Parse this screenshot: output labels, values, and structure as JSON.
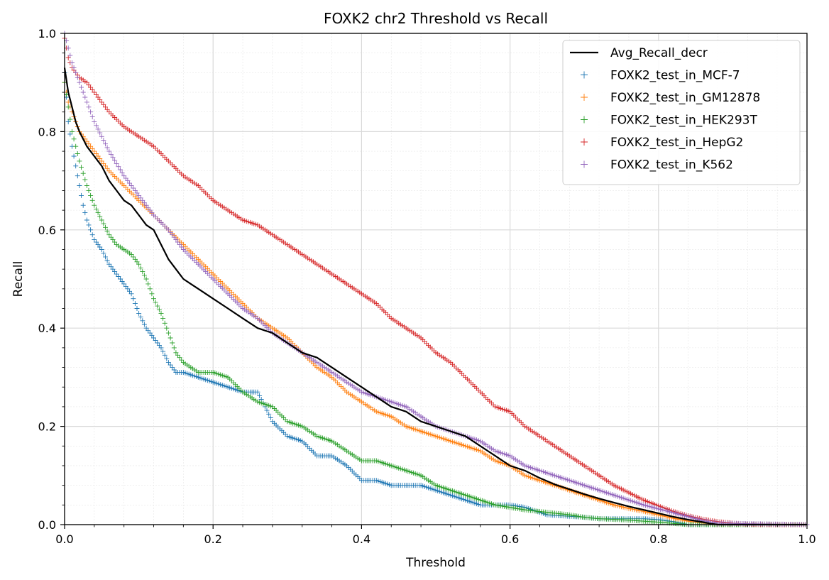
{
  "chart_data": {
    "type": "scatter",
    "title": "FOXK2 chr2 Threshold vs Recall",
    "xlabel": "Threshold",
    "ylabel": "Recall",
    "xlim": [
      0.0,
      1.0
    ],
    "ylim": [
      0.0,
      1.0
    ],
    "xticks": [
      "0.0",
      "0.2",
      "0.4",
      "0.6",
      "0.8",
      "1.0"
    ],
    "yticks": [
      "0.0",
      "0.2",
      "0.4",
      "0.6",
      "0.8",
      "1.0"
    ],
    "grid": true,
    "minor_grid": true,
    "legend_position": "upper right",
    "series": [
      {
        "name": "Avg_Recall_decr",
        "kind": "line",
        "color": "#000000",
        "x": [
          0.0,
          0.005,
          0.01,
          0.015,
          0.02,
          0.03,
          0.04,
          0.05,
          0.06,
          0.07,
          0.08,
          0.09,
          0.1,
          0.11,
          0.12,
          0.13,
          0.14,
          0.15,
          0.16,
          0.17,
          0.18,
          0.2,
          0.22,
          0.24,
          0.26,
          0.28,
          0.3,
          0.32,
          0.34,
          0.36,
          0.38,
          0.4,
          0.42,
          0.44,
          0.46,
          0.48,
          0.5,
          0.52,
          0.54,
          0.56,
          0.58,
          0.6,
          0.62,
          0.64,
          0.66,
          0.68,
          0.7,
          0.72,
          0.74,
          0.76,
          0.78,
          0.8,
          0.82,
          0.84,
          0.86,
          0.87,
          0.88,
          0.89,
          0.9,
          1.0
        ],
        "y": [
          0.93,
          0.88,
          0.85,
          0.82,
          0.8,
          0.77,
          0.75,
          0.73,
          0.7,
          0.68,
          0.66,
          0.65,
          0.63,
          0.61,
          0.6,
          0.57,
          0.54,
          0.52,
          0.5,
          0.49,
          0.48,
          0.46,
          0.44,
          0.42,
          0.4,
          0.39,
          0.37,
          0.35,
          0.34,
          0.32,
          0.3,
          0.28,
          0.26,
          0.24,
          0.23,
          0.21,
          0.2,
          0.19,
          0.18,
          0.16,
          0.14,
          0.12,
          0.11,
          0.095,
          0.082,
          0.072,
          0.062,
          0.053,
          0.045,
          0.037,
          0.03,
          0.023,
          0.016,
          0.01,
          0.005,
          0.002,
          0.0,
          0.0,
          0.0,
          0.0
        ]
      },
      {
        "name": "FOXK2_test_in_MCF-7",
        "kind": "markers",
        "color": "#1f77b4",
        "x": [
          0.0,
          0.005,
          0.01,
          0.015,
          0.02,
          0.025,
          0.03,
          0.035,
          0.04,
          0.05,
          0.06,
          0.07,
          0.08,
          0.09,
          0.1,
          0.11,
          0.12,
          0.13,
          0.14,
          0.15,
          0.16,
          0.18,
          0.2,
          0.22,
          0.24,
          0.26,
          0.27,
          0.28,
          0.3,
          0.32,
          0.34,
          0.36,
          0.38,
          0.4,
          0.42,
          0.44,
          0.46,
          0.48,
          0.5,
          0.52,
          0.54,
          0.56,
          0.6,
          0.62,
          0.65,
          0.7,
          0.72,
          0.75,
          0.78,
          0.8,
          0.82,
          0.84,
          1.0
        ],
        "y": [
          0.92,
          0.82,
          0.77,
          0.73,
          0.69,
          0.65,
          0.62,
          0.6,
          0.58,
          0.56,
          0.53,
          0.51,
          0.49,
          0.47,
          0.43,
          0.4,
          0.38,
          0.36,
          0.33,
          0.31,
          0.31,
          0.3,
          0.29,
          0.28,
          0.27,
          0.27,
          0.24,
          0.21,
          0.18,
          0.17,
          0.14,
          0.14,
          0.12,
          0.09,
          0.09,
          0.08,
          0.08,
          0.08,
          0.07,
          0.06,
          0.05,
          0.04,
          0.04,
          0.035,
          0.02,
          0.015,
          0.012,
          0.012,
          0.012,
          0.01,
          0.006,
          0.0,
          0.0
        ]
      },
      {
        "name": "FOXK2_test_in_GM12878",
        "kind": "markers",
        "color": "#ff7f0e",
        "x": [
          0.0,
          0.005,
          0.01,
          0.015,
          0.02,
          0.03,
          0.04,
          0.05,
          0.06,
          0.08,
          0.1,
          0.12,
          0.14,
          0.16,
          0.18,
          0.2,
          0.22,
          0.24,
          0.26,
          0.28,
          0.3,
          0.32,
          0.34,
          0.36,
          0.38,
          0.4,
          0.42,
          0.44,
          0.46,
          0.48,
          0.5,
          0.52,
          0.54,
          0.56,
          0.58,
          0.6,
          0.62,
          0.64,
          0.66,
          0.68,
          0.7,
          0.72,
          0.74,
          0.76,
          0.78,
          0.8,
          0.82,
          0.84,
          0.86,
          0.88,
          1.0
        ],
        "y": [
          0.9,
          0.86,
          0.84,
          0.82,
          0.8,
          0.78,
          0.76,
          0.74,
          0.72,
          0.69,
          0.66,
          0.63,
          0.6,
          0.57,
          0.54,
          0.51,
          0.48,
          0.45,
          0.42,
          0.4,
          0.38,
          0.35,
          0.32,
          0.3,
          0.27,
          0.25,
          0.23,
          0.22,
          0.2,
          0.19,
          0.18,
          0.17,
          0.16,
          0.15,
          0.13,
          0.12,
          0.1,
          0.09,
          0.08,
          0.07,
          0.06,
          0.05,
          0.04,
          0.033,
          0.027,
          0.02,
          0.013,
          0.007,
          0.003,
          0.0,
          0.0
        ]
      },
      {
        "name": "FOXK2_test_in_HEK293T",
        "kind": "markers",
        "color": "#2ca02c",
        "x": [
          0.0,
          0.005,
          0.01,
          0.015,
          0.02,
          0.03,
          0.04,
          0.05,
          0.06,
          0.07,
          0.08,
          0.09,
          0.1,
          0.11,
          0.12,
          0.13,
          0.14,
          0.15,
          0.16,
          0.18,
          0.2,
          0.22,
          0.24,
          0.26,
          0.28,
          0.3,
          0.32,
          0.34,
          0.36,
          0.38,
          0.4,
          0.42,
          0.44,
          0.46,
          0.48,
          0.5,
          0.52,
          0.54,
          0.56,
          0.58,
          0.6,
          0.62,
          0.65,
          0.68,
          0.7,
          0.72,
          0.75,
          0.8,
          0.84,
          1.0
        ],
        "y": [
          0.9,
          0.85,
          0.8,
          0.77,
          0.74,
          0.69,
          0.65,
          0.62,
          0.59,
          0.57,
          0.56,
          0.55,
          0.53,
          0.5,
          0.46,
          0.43,
          0.39,
          0.35,
          0.33,
          0.31,
          0.31,
          0.3,
          0.27,
          0.25,
          0.24,
          0.21,
          0.2,
          0.18,
          0.17,
          0.15,
          0.13,
          0.13,
          0.12,
          0.11,
          0.1,
          0.08,
          0.07,
          0.06,
          0.05,
          0.04,
          0.035,
          0.03,
          0.025,
          0.02,
          0.015,
          0.012,
          0.01,
          0.005,
          0.0,
          0.0
        ]
      },
      {
        "name": "FOXK2_test_in_HepG2",
        "kind": "markers",
        "color": "#d62728",
        "x": [
          0.0,
          0.005,
          0.01,
          0.02,
          0.03,
          0.04,
          0.05,
          0.06,
          0.08,
          0.1,
          0.12,
          0.14,
          0.16,
          0.18,
          0.2,
          0.22,
          0.24,
          0.26,
          0.28,
          0.3,
          0.32,
          0.34,
          0.36,
          0.38,
          0.4,
          0.42,
          0.44,
          0.46,
          0.48,
          0.5,
          0.52,
          0.54,
          0.56,
          0.58,
          0.6,
          0.62,
          0.64,
          0.66,
          0.68,
          0.7,
          0.72,
          0.74,
          0.76,
          0.78,
          0.8,
          0.82,
          0.84,
          0.86,
          0.88,
          0.9,
          0.92,
          0.95,
          1.0
        ],
        "y": [
          0.99,
          0.95,
          0.93,
          0.91,
          0.9,
          0.88,
          0.86,
          0.84,
          0.81,
          0.79,
          0.77,
          0.74,
          0.71,
          0.69,
          0.66,
          0.64,
          0.62,
          0.61,
          0.59,
          0.57,
          0.55,
          0.53,
          0.51,
          0.49,
          0.47,
          0.45,
          0.42,
          0.4,
          0.38,
          0.35,
          0.33,
          0.3,
          0.27,
          0.24,
          0.23,
          0.2,
          0.18,
          0.16,
          0.14,
          0.12,
          0.1,
          0.08,
          0.065,
          0.05,
          0.038,
          0.027,
          0.018,
          0.011,
          0.006,
          0.003,
          0.001,
          0.0,
          0.0
        ]
      },
      {
        "name": "FOXK2_test_in_K562",
        "kind": "markers",
        "color": "#9467bd",
        "x": [
          0.0,
          0.005,
          0.01,
          0.015,
          0.02,
          0.03,
          0.04,
          0.05,
          0.06,
          0.08,
          0.1,
          0.12,
          0.14,
          0.16,
          0.18,
          0.2,
          0.22,
          0.24,
          0.26,
          0.28,
          0.3,
          0.32,
          0.34,
          0.36,
          0.38,
          0.4,
          0.42,
          0.44,
          0.46,
          0.48,
          0.5,
          0.52,
          0.54,
          0.56,
          0.58,
          0.6,
          0.62,
          0.64,
          0.66,
          0.68,
          0.7,
          0.72,
          0.74,
          0.76,
          0.78,
          0.8,
          0.82,
          0.84,
          0.86,
          0.88,
          1.0
        ],
        "y": [
          1.0,
          0.97,
          0.94,
          0.92,
          0.9,
          0.86,
          0.82,
          0.79,
          0.76,
          0.71,
          0.67,
          0.63,
          0.6,
          0.56,
          0.53,
          0.5,
          0.47,
          0.44,
          0.42,
          0.39,
          0.37,
          0.35,
          0.33,
          0.31,
          0.29,
          0.27,
          0.26,
          0.25,
          0.24,
          0.22,
          0.2,
          0.19,
          0.18,
          0.17,
          0.15,
          0.14,
          0.12,
          0.11,
          0.1,
          0.09,
          0.08,
          0.07,
          0.06,
          0.05,
          0.04,
          0.032,
          0.024,
          0.016,
          0.008,
          0.003,
          0.0
        ]
      }
    ]
  }
}
